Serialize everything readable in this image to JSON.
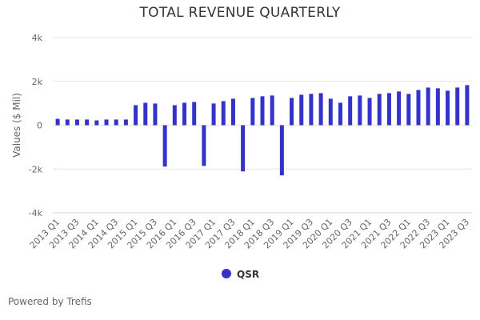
{
  "chart_data": {
    "type": "bar",
    "title": "TOTAL REVENUE QUARTERLY",
    "ylabel": "Values ($ Mil)",
    "xlabel": "",
    "ylim": [
      -4000,
      4000
    ],
    "yticks": [
      4000,
      2000,
      0,
      -2000,
      -4000
    ],
    "ytick_labels": [
      "4k",
      "2k",
      "0",
      "-2k",
      "-4k"
    ],
    "grid": true,
    "legend_position": "bottom",
    "categories": [
      "2013 Q1",
      "2013 Q2",
      "2013 Q3",
      "2013 Q4",
      "2014 Q1",
      "2014 Q2",
      "2014 Q3",
      "2014 Q4",
      "2015 Q1",
      "2015 Q2",
      "2015 Q3",
      "2015 Q4",
      "2016 Q1",
      "2016 Q2",
      "2016 Q3",
      "2016 Q4",
      "2017 Q1",
      "2017 Q2",
      "2017 Q3",
      "2017 Q4",
      "2018 Q1",
      "2018 Q2",
      "2018 Q3",
      "2018 Q4",
      "2019 Q1",
      "2019 Q2",
      "2019 Q3",
      "2019 Q4",
      "2020 Q1",
      "2020 Q2",
      "2020 Q3",
      "2020 Q4",
      "2021 Q1",
      "2021 Q2",
      "2021 Q3",
      "2021 Q4",
      "2022 Q1",
      "2022 Q2",
      "2022 Q3",
      "2022 Q4",
      "2023 Q1",
      "2023 Q2",
      "2023 Q3"
    ],
    "series": [
      {
        "name": "QSR",
        "color": "#3333cc",
        "values": [
          290,
          260,
          260,
          260,
          220,
          260,
          260,
          260,
          915,
          1025,
          990,
          -1890,
          915,
          1025,
          1060,
          -1860,
          990,
          1100,
          1210,
          -2110,
          1245,
          1320,
          1355,
          -2290,
          1245,
          1390,
          1430,
          1465,
          1210,
          1025,
          1320,
          1355,
          1245,
          1430,
          1465,
          1540,
          1430,
          1610,
          1720,
          1685,
          1575,
          1720,
          1830
        ]
      }
    ]
  },
  "footer": {
    "credit": "Powered by Trefis"
  }
}
